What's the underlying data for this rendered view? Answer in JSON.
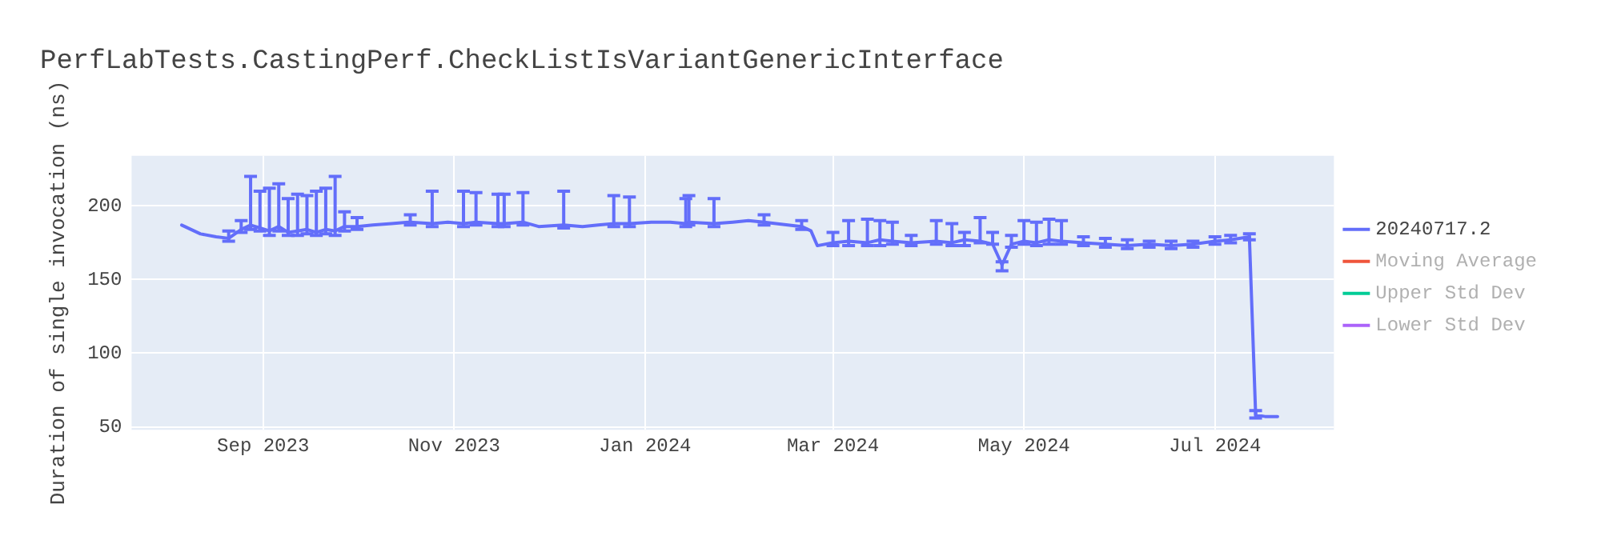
{
  "chart_data": {
    "type": "line",
    "title": "PerfLabTests.CastingPerf.CheckListIsVariantGenericInterface",
    "ylabel": "Duration of single invocation (ns)",
    "x": [
      "2023-08-06",
      "2023-08-12",
      "2023-08-17",
      "2023-08-21",
      "2023-08-25",
      "2023-08-28",
      "2023-08-31",
      "2023-09-03",
      "2023-09-06",
      "2023-09-09",
      "2023-09-12",
      "2023-09-15",
      "2023-09-18",
      "2023-09-21",
      "2023-09-24",
      "2023-09-27",
      "2023-10-01",
      "2023-10-06",
      "2023-10-12",
      "2023-10-18",
      "2023-10-25",
      "2023-10-30",
      "2023-11-04",
      "2023-11-08",
      "2023-11-15",
      "2023-11-17",
      "2023-11-23",
      "2023-11-28",
      "2023-12-06",
      "2023-12-12",
      "2023-12-17",
      "2023-12-22",
      "2023-12-27",
      "2024-01-03",
      "2024-01-09",
      "2024-01-14",
      "2024-01-15",
      "2024-01-23",
      "2024-01-29",
      "2024-02-03",
      "2024-02-08",
      "2024-02-20",
      "2024-02-23",
      "2024-02-25",
      "2024-03-01",
      "2024-03-06",
      "2024-03-12",
      "2024-03-16",
      "2024-03-20",
      "2024-03-26",
      "2024-04-03",
      "2024-04-08",
      "2024-04-12",
      "2024-04-17",
      "2024-04-21",
      "2024-04-24",
      "2024-04-27",
      "2024-05-01",
      "2024-05-05",
      "2024-05-09",
      "2024-05-13",
      "2024-05-20",
      "2024-05-27",
      "2024-06-03",
      "2024-06-10",
      "2024-06-17",
      "2024-06-24",
      "2024-07-01",
      "2024-07-06",
      "2024-07-12",
      "2024-07-14",
      "2024-07-17",
      "2024-07-21"
    ],
    "series": [
      {
        "name": "20240717.2",
        "color": "#636efa",
        "values": [
          187,
          181,
          179,
          178,
          184,
          187,
          185,
          183,
          186,
          182,
          183,
          184,
          182,
          184,
          183,
          186,
          186,
          187,
          188,
          189,
          188,
          189,
          188,
          189,
          188,
          188,
          189,
          186,
          187,
          186,
          187,
          188,
          188,
          189,
          189,
          188,
          189,
          188,
          189,
          190,
          189,
          186,
          183,
          173,
          175,
          176,
          175,
          177,
          176,
          175,
          176,
          175,
          177,
          176,
          174,
          160,
          174,
          176,
          175,
          177,
          176,
          175,
          174,
          173,
          174,
          173,
          174,
          176,
          177,
          179,
          58,
          57,
          57
        ],
        "errors": [
          null,
          null,
          null,
          [
            176,
            183
          ],
          [
            182,
            190
          ],
          [
            184,
            220
          ],
          [
            183,
            210
          ],
          [
            180,
            212
          ],
          [
            183,
            215
          ],
          [
            180,
            205
          ],
          [
            180,
            208
          ],
          [
            181,
            207
          ],
          [
            180,
            210
          ],
          [
            181,
            212
          ],
          [
            180,
            220
          ],
          [
            183,
            196
          ],
          [
            184,
            192
          ],
          null,
          null,
          [
            187,
            194
          ],
          [
            186,
            210
          ],
          null,
          [
            186,
            210
          ],
          [
            187,
            209
          ],
          [
            186,
            208
          ],
          [
            186,
            208
          ],
          [
            187,
            209
          ],
          null,
          [
            185,
            210
          ],
          null,
          null,
          [
            186,
            207
          ],
          [
            186,
            206
          ],
          null,
          null,
          [
            186,
            205
          ],
          [
            187,
            207
          ],
          [
            186,
            205
          ],
          null,
          null,
          [
            187,
            194
          ],
          [
            184,
            190
          ],
          null,
          null,
          [
            173,
            182
          ],
          [
            173,
            190
          ],
          [
            173,
            191
          ],
          [
            173,
            190
          ],
          [
            174,
            189
          ],
          [
            173,
            180
          ],
          [
            174,
            190
          ],
          [
            173,
            188
          ],
          [
            173,
            182
          ],
          [
            175,
            192
          ],
          [
            174,
            182
          ],
          [
            156,
            162
          ],
          [
            172,
            180
          ],
          [
            174,
            190
          ],
          [
            173,
            189
          ],
          [
            174,
            191
          ],
          [
            174,
            190
          ],
          [
            173,
            179
          ],
          [
            172,
            178
          ],
          [
            171,
            177
          ],
          [
            172,
            176
          ],
          [
            171,
            176
          ],
          [
            172,
            176
          ],
          [
            174,
            179
          ],
          [
            175,
            180
          ],
          [
            177,
            181
          ],
          [
            56,
            61
          ],
          null,
          null
        ]
      },
      {
        "name": "Moving Average",
        "color": "#ef553b",
        "values": [
          null,
          null,
          null,
          null,
          null,
          null,
          null,
          null,
          null,
          null,
          null,
          null,
          null,
          null,
          null,
          null,
          null,
          null,
          null,
          null,
          null,
          null,
          null,
          null,
          null,
          null,
          null,
          null,
          null,
          null,
          null,
          null,
          null,
          null,
          null,
          null,
          null,
          null,
          null,
          null,
          null,
          null,
          null,
          null,
          null,
          null,
          null,
          null,
          null,
          null,
          null,
          null,
          null,
          null,
          null,
          null,
          null,
          null,
          null,
          null,
          null,
          null,
          null,
          null,
          null,
          null,
          null,
          null,
          null,
          null,
          null,
          null,
          null
        ]
      },
      {
        "name": "Upper Std Dev",
        "color": "#00cc96",
        "values": [
          null,
          null,
          null,
          null,
          null,
          null,
          null,
          null,
          null,
          null,
          null,
          null,
          null,
          null,
          null,
          null,
          null,
          null,
          null,
          null,
          null,
          null,
          null,
          null,
          null,
          null,
          null,
          null,
          null,
          null,
          null,
          null,
          null,
          null,
          null,
          null,
          null,
          null,
          null,
          null,
          null,
          null,
          null,
          null,
          null,
          null,
          null,
          null,
          null,
          null,
          null,
          null,
          null,
          null,
          null,
          null,
          null,
          null,
          null,
          null,
          null,
          null,
          null,
          null,
          null,
          null,
          null,
          null,
          null,
          null,
          null,
          null,
          null
        ]
      },
      {
        "name": "Lower Std Dev",
        "color": "#ab63fa",
        "values": [
          null,
          null,
          null,
          null,
          null,
          null,
          null,
          null,
          null,
          null,
          null,
          null,
          null,
          null,
          null,
          null,
          null,
          null,
          null,
          null,
          null,
          null,
          null,
          null,
          null,
          null,
          null,
          null,
          null,
          null,
          null,
          null,
          null,
          null,
          null,
          null,
          null,
          null,
          null,
          null,
          null,
          null,
          null,
          null,
          null,
          null,
          null,
          null,
          null,
          null,
          null,
          null,
          null,
          null,
          null,
          null,
          null,
          null,
          null,
          null,
          null,
          null,
          null,
          null,
          null,
          null,
          null,
          null,
          null,
          null,
          null,
          null,
          null
        ]
      }
    ],
    "xlim": [
      "2023-07-21",
      "2024-08-08"
    ],
    "xticks": [
      {
        "value": "2023-09-01",
        "label": "Sep 2023"
      },
      {
        "value": "2023-11-01",
        "label": "Nov 2023"
      },
      {
        "value": "2024-01-01",
        "label": "Jan 2024"
      },
      {
        "value": "2024-03-01",
        "label": "Mar 2024"
      },
      {
        "value": "2024-05-01",
        "label": "May 2024"
      },
      {
        "value": "2024-07-01",
        "label": "Jul 2024"
      }
    ],
    "ylim": [
      48,
      234
    ],
    "yticks": [
      50,
      100,
      150,
      200
    ],
    "grid": true,
    "legend": "right",
    "marker": "none",
    "line_style": "solid"
  }
}
